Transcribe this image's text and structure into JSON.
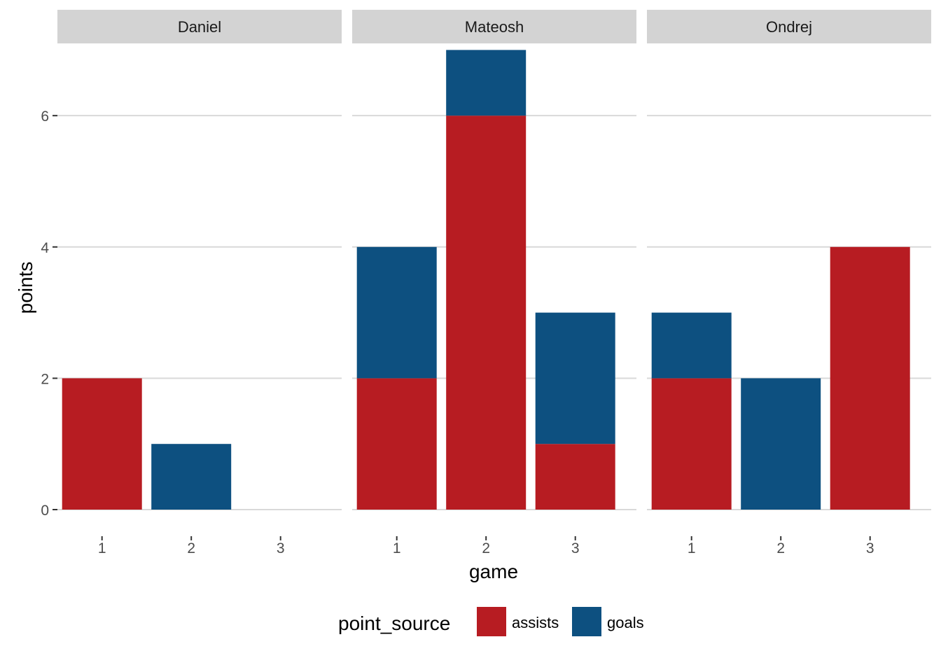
{
  "chart_data": {
    "type": "bar",
    "stacked": true,
    "facet_by": "player",
    "facets": [
      "Daniel",
      "Mateosh",
      "Ondrej"
    ],
    "categories": [
      "1",
      "2",
      "3"
    ],
    "xlabel": "game",
    "ylabel": "points",
    "ylim": [
      0,
      7.1
    ],
    "yticks": [
      0,
      2,
      4,
      6
    ],
    "grid": "horizontal",
    "legend": {
      "title": "point_source",
      "placement": "bottom",
      "entries": [
        "assists",
        "goals"
      ]
    },
    "colors": {
      "assists": "#b71c22",
      "goals": "#0d5080",
      "strip_bg": "#d3d3d3",
      "grid": "#d9d9d9"
    },
    "series": [
      {
        "name": "assists",
        "values": {
          "Daniel": [
            2,
            0,
            0
          ],
          "Mateosh": [
            2,
            6,
            1
          ],
          "Ondrej": [
            2,
            0,
            4
          ]
        }
      },
      {
        "name": "goals",
        "values": {
          "Daniel": [
            0,
            1,
            0
          ],
          "Mateosh": [
            2,
            1,
            2
          ],
          "Ondrej": [
            1,
            2,
            0
          ]
        }
      }
    ]
  }
}
